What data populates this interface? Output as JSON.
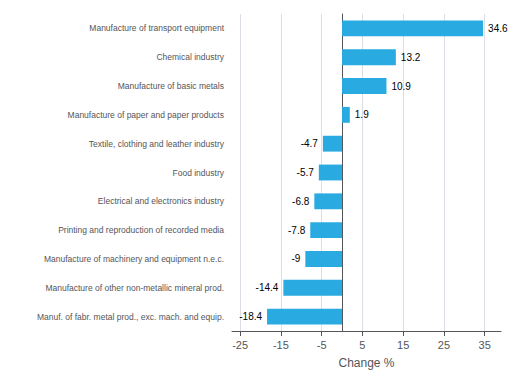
{
  "chart_data": {
    "type": "bar",
    "orientation": "horizontal",
    "categories": [
      "Manuf. of fabr. metal prod., exc. mach. and equip.",
      "Manufacture of other non-metallic mineral prod.",
      "Manufacture of machinery and equipment n.e.c.",
      "Printing and reproduction of recorded media",
      "Electrical and electronics industry",
      "Food industry",
      "Textile, clothing and leather industry",
      "Manufacture of paper and paper products",
      "Manufacture of basic metals",
      "Chemical industry",
      "Manufacture of transport equipment"
    ],
    "values": [
      -18.4,
      -14.4,
      -9.0,
      -7.8,
      -6.8,
      -5.7,
      -4.7,
      1.9,
      10.9,
      13.2,
      34.6
    ],
    "color": "#29abe2",
    "xlabel": "Change %",
    "xlim": [
      -27,
      39
    ],
    "xticks": [
      -25,
      -15,
      -5,
      5,
      15,
      25,
      35
    ],
    "grid": true,
    "data_labels": true
  }
}
